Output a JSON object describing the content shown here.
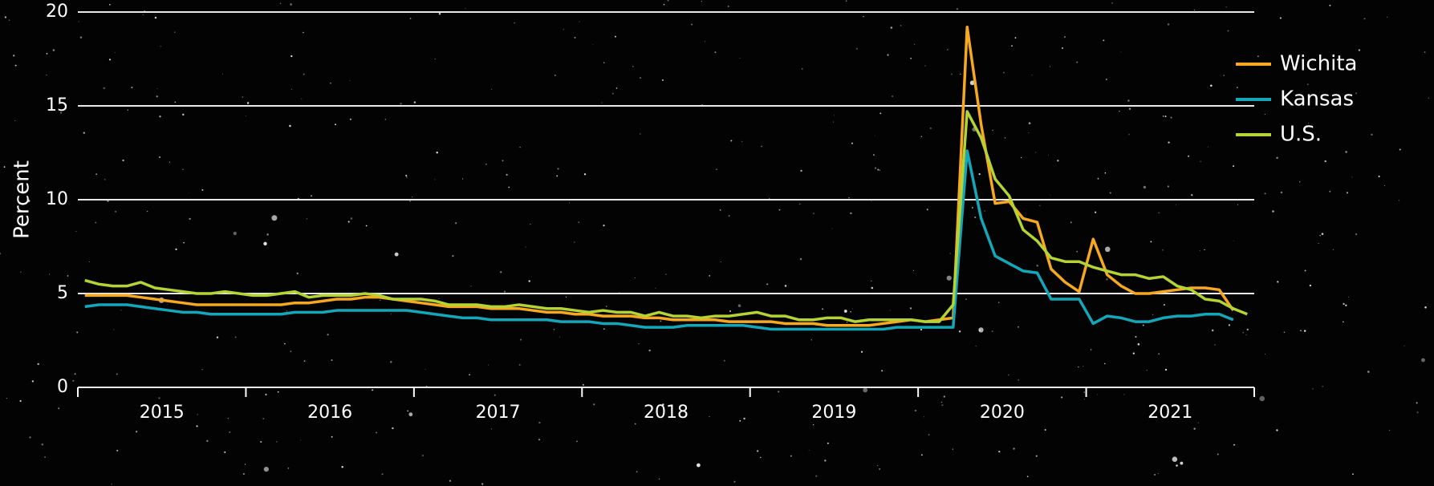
{
  "chart_data": {
    "type": "line",
    "y_label": "Percent",
    "categories": [
      null,
      null,
      null,
      null,
      null,
      null,
      "2015",
      null,
      null,
      null,
      null,
      null,
      null,
      null,
      null,
      null,
      null,
      null,
      "2016",
      null,
      null,
      null,
      null,
      null,
      null,
      null,
      null,
      null,
      null,
      null,
      "2017",
      null,
      null,
      null,
      null,
      null,
      null,
      null,
      null,
      null,
      null,
      null,
      "2018",
      null,
      null,
      null,
      null,
      null,
      null,
      null,
      null,
      null,
      null,
      null,
      "2019",
      null,
      null,
      null,
      null,
      null,
      null,
      null,
      null,
      null,
      null,
      null,
      "2020",
      null,
      null,
      null,
      null,
      null,
      null,
      null,
      null,
      null,
      null,
      null,
      "2021",
      null,
      null,
      null,
      null,
      null
    ],
    "series": [
      {
        "name": "Wichita",
        "color": "#f6a821",
        "values": [
          4.9,
          4.9,
          4.9,
          4.9,
          4.8,
          4.7,
          4.6,
          4.5,
          4.4,
          4.4,
          4.4,
          4.4,
          4.4,
          4.4,
          4.4,
          4.5,
          4.5,
          4.6,
          4.7,
          4.7,
          4.8,
          4.8,
          4.7,
          4.6,
          4.5,
          4.4,
          4.3,
          4.3,
          4.3,
          4.2,
          4.2,
          4.2,
          4.1,
          4.0,
          4.0,
          3.9,
          3.9,
          3.8,
          3.8,
          3.8,
          3.7,
          3.7,
          3.6,
          3.6,
          3.6,
          3.6,
          3.5,
          3.5,
          3.5,
          3.5,
          3.4,
          3.4,
          3.4,
          3.3,
          3.3,
          3.3,
          3.3,
          3.4,
          3.5,
          3.6,
          3.5,
          3.6,
          3.7,
          19.2,
          14.0,
          9.8,
          9.9,
          9.0,
          8.8,
          6.3,
          5.6,
          5.1,
          7.9,
          6.0,
          5.4,
          5.0,
          5.0,
          5.1,
          5.2,
          5.3,
          5.3,
          5.2,
          4.1,
          null
        ]
      },
      {
        "name": "Kansas",
        "color": "#14a6b9",
        "values": [
          4.3,
          4.4,
          4.4,
          4.4,
          4.3,
          4.2,
          4.1,
          4.0,
          4.0,
          3.9,
          3.9,
          3.9,
          3.9,
          3.9,
          3.9,
          4.0,
          4.0,
          4.0,
          4.1,
          4.1,
          4.1,
          4.1,
          4.1,
          4.1,
          4.0,
          3.9,
          3.8,
          3.7,
          3.7,
          3.6,
          3.6,
          3.6,
          3.6,
          3.6,
          3.5,
          3.5,
          3.5,
          3.4,
          3.4,
          3.3,
          3.2,
          3.2,
          3.2,
          3.3,
          3.3,
          3.3,
          3.3,
          3.3,
          3.2,
          3.1,
          3.1,
          3.1,
          3.1,
          3.1,
          3.1,
          3.1,
          3.1,
          3.1,
          3.2,
          3.2,
          3.2,
          3.2,
          3.2,
          12.6,
          9.0,
          7.0,
          6.6,
          6.2,
          6.1,
          4.7,
          4.7,
          4.7,
          3.4,
          3.8,
          3.7,
          3.5,
          3.5,
          3.7,
          3.8,
          3.8,
          3.9,
          3.9,
          3.6,
          null
        ]
      },
      {
        "name": "U.S.",
        "color": "#b4d335",
        "values": [
          5.7,
          5.5,
          5.4,
          5.4,
          5.6,
          5.3,
          5.2,
          5.1,
          5.0,
          5.0,
          5.1,
          5.0,
          4.9,
          4.9,
          5.0,
          5.1,
          4.8,
          4.9,
          4.9,
          4.9,
          5.0,
          4.9,
          4.7,
          4.7,
          4.7,
          4.6,
          4.4,
          4.4,
          4.4,
          4.3,
          4.3,
          4.4,
          4.3,
          4.2,
          4.2,
          4.1,
          4.0,
          4.1,
          4.0,
          4.0,
          3.8,
          4.0,
          3.8,
          3.8,
          3.7,
          3.8,
          3.8,
          3.9,
          4.0,
          3.8,
          3.8,
          3.6,
          3.6,
          3.7,
          3.7,
          3.5,
          3.6,
          3.6,
          3.6,
          3.6,
          3.5,
          3.5,
          4.4,
          14.7,
          13.3,
          11.1,
          10.2,
          8.4,
          7.8,
          6.9,
          6.7,
          6.7,
          6.4,
          6.2,
          6.0,
          6.0,
          5.8,
          5.9,
          5.4,
          5.2,
          4.7,
          4.6,
          4.2,
          3.9
        ]
      }
    ],
    "ylim": [
      0,
      20
    ],
    "yticks": [
      0,
      5,
      10,
      15,
      20
    ],
    "grid": true,
    "legend": "upper right"
  }
}
